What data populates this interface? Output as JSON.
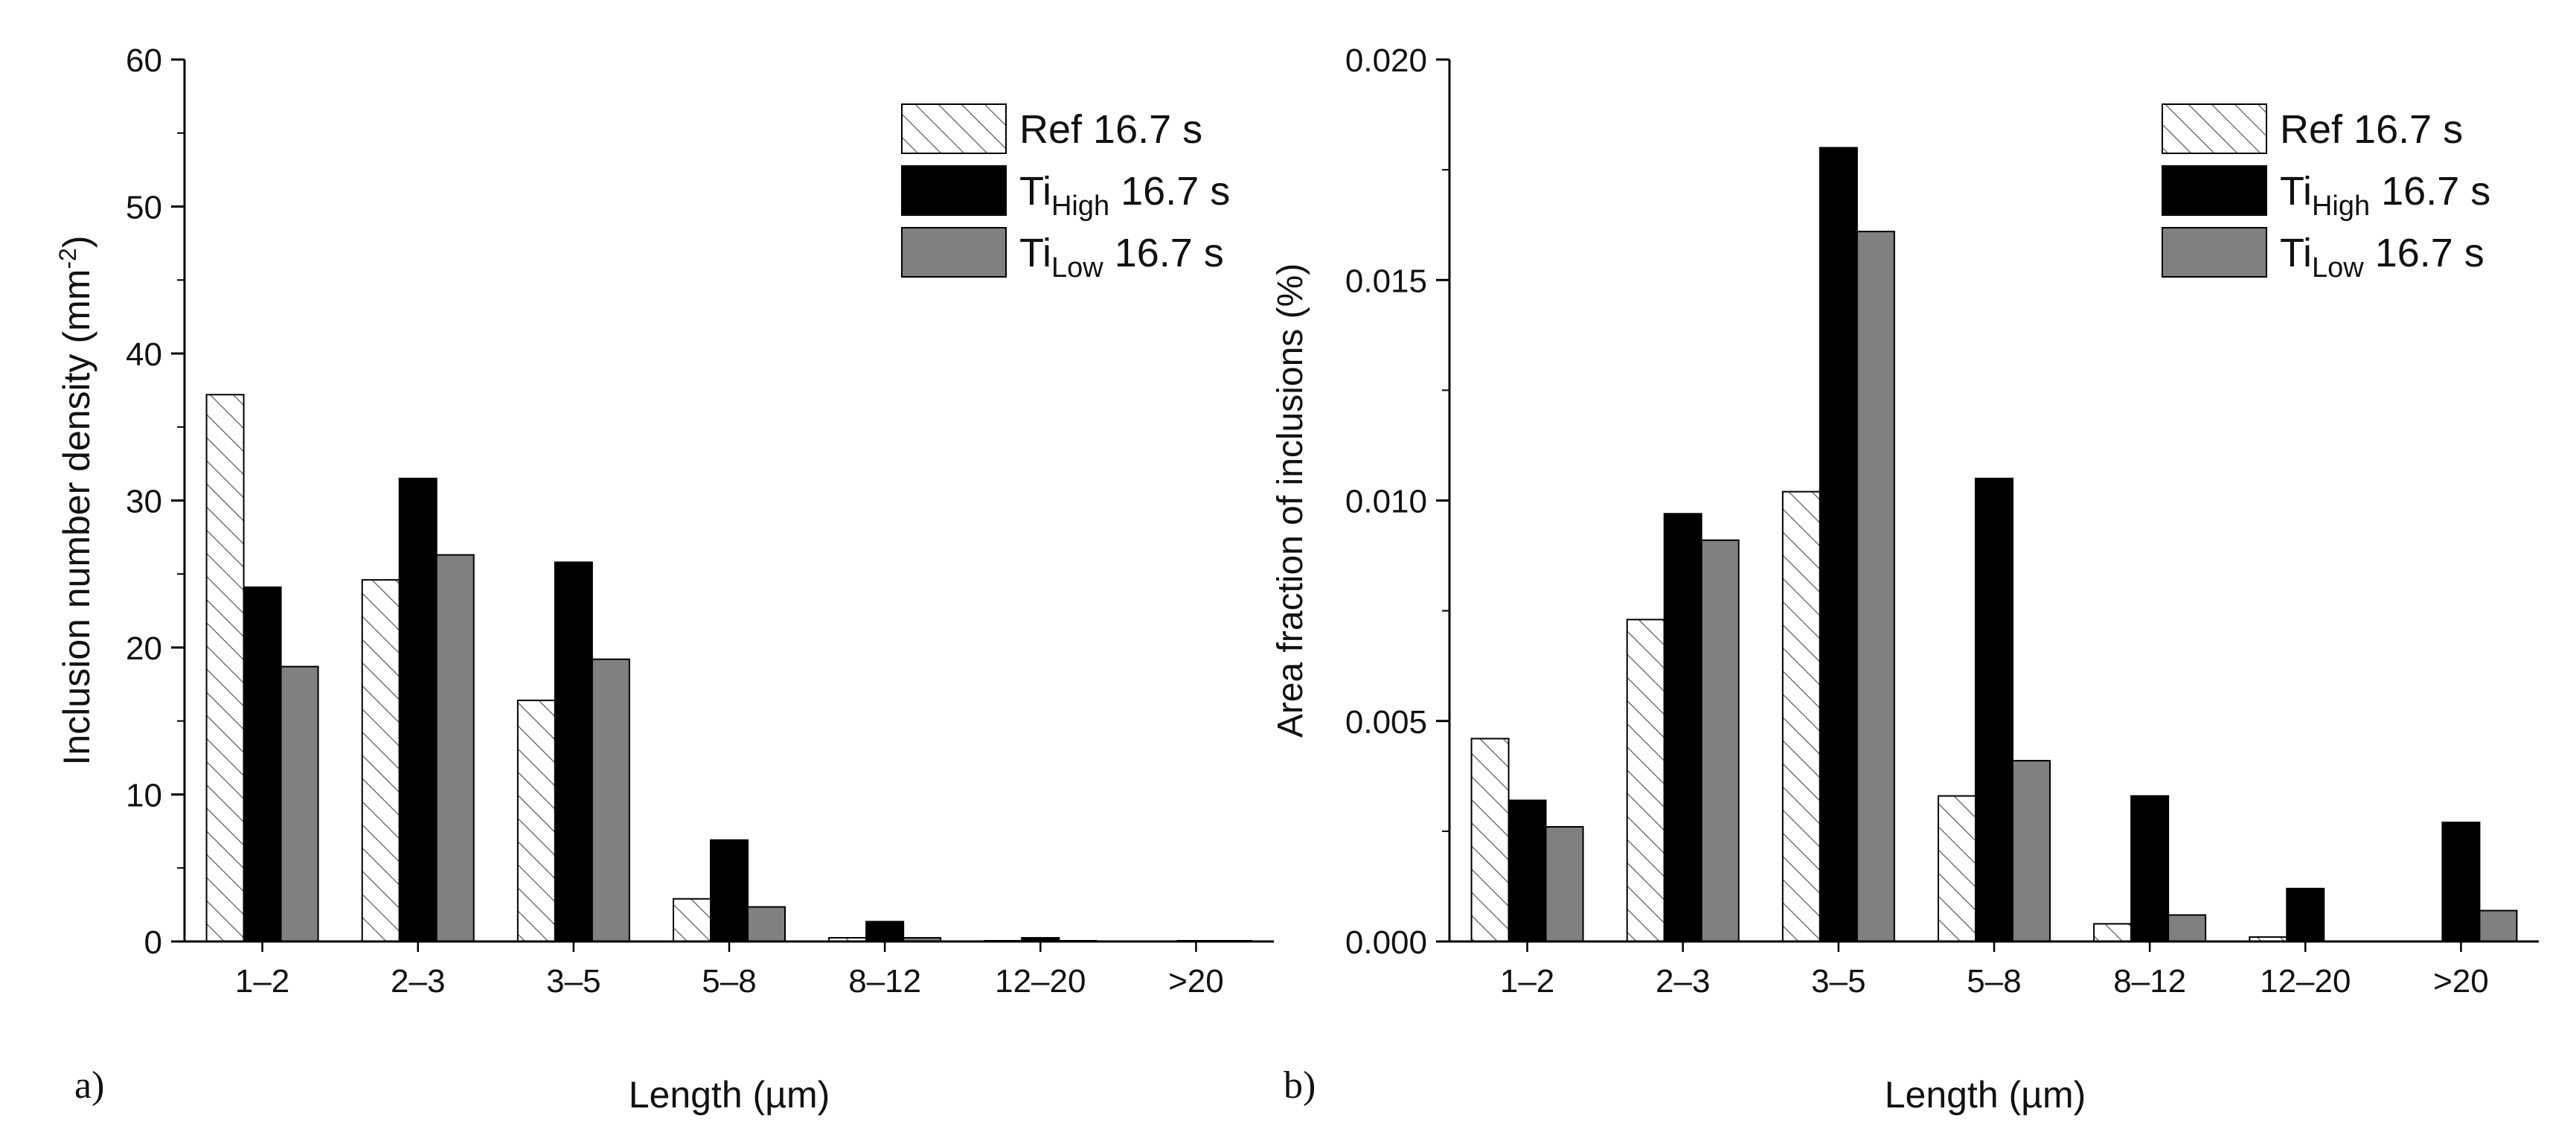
{
  "chart_data": [
    {
      "panel": "a)",
      "type": "bar",
      "title": "",
      "xlabel": "Length (µm)",
      "ylabel": "Inclusion number density (mm⁻²)",
      "ylabel_parts": [
        "Inclusion number density (mm",
        "-2",
        ")"
      ],
      "categories": [
        "1–2",
        "2–3",
        "3–5",
        "5–8",
        "8–12",
        "12–20",
        ">20"
      ],
      "ylim": [
        0,
        60
      ],
      "yticks": [
        0,
        10,
        20,
        30,
        40,
        50,
        60
      ],
      "ytick_labels": [
        "0",
        "10",
        "20",
        "30",
        "40",
        "50",
        "60"
      ],
      "series": [
        {
          "name": "Ref 16.7 s",
          "label_base": "Ref",
          "label_sub": "",
          "label_tail": " 16.7 s",
          "style": "hatch",
          "values": [
            37.2,
            24.6,
            16.4,
            2.9,
            0.25,
            0.05,
            0.0
          ]
        },
        {
          "name": "Ti_High 16.7 s",
          "label_base": "Ti",
          "label_sub": "High",
          "label_tail": " 16.7 s",
          "style": "black",
          "values": [
            24.1,
            31.5,
            25.8,
            6.9,
            1.35,
            0.25,
            0.05
          ]
        },
        {
          "name": "Ti_Low 16.7 s",
          "label_base": "Ti",
          "label_sub": "Low",
          "label_tail": " 16.7 s",
          "style": "gray",
          "values": [
            18.7,
            26.3,
            19.2,
            2.35,
            0.25,
            0.05,
            0.05
          ]
        }
      ],
      "legend": "top-right"
    },
    {
      "panel": "b)",
      "type": "bar",
      "title": "",
      "xlabel": "Length (µm)",
      "ylabel": "Area fraction of inclusions (%)",
      "ylabel_parts": [
        "Area fraction of inclusions (%)",
        "",
        ""
      ],
      "categories": [
        "1–2",
        "2–3",
        "3–5",
        "5–8",
        "8–12",
        "12–20",
        ">20"
      ],
      "ylim": [
        0,
        0.02
      ],
      "yticks": [
        0,
        0.005,
        0.01,
        0.015,
        0.02
      ],
      "ytick_labels": [
        "0.000",
        "0.005",
        "0.010",
        "0.015",
        "0.020"
      ],
      "series": [
        {
          "name": "Ref 16.7 s",
          "label_base": "Ref",
          "label_sub": "",
          "label_tail": " 16.7 s",
          "style": "hatch",
          "values": [
            0.0046,
            0.0073,
            0.0102,
            0.0033,
            0.0004,
            0.0001,
            0.0
          ]
        },
        {
          "name": "Ti_High 16.7 s",
          "label_base": "Ti",
          "label_sub": "High",
          "label_tail": " 16.7 s",
          "style": "black",
          "values": [
            0.0032,
            0.0097,
            0.018,
            0.0105,
            0.0033,
            0.0012,
            0.0027
          ]
        },
        {
          "name": "Ti_Low 16.7 s",
          "label_base": "Ti",
          "label_sub": "Low",
          "label_tail": " 16.7 s",
          "style": "gray",
          "values": [
            0.0026,
            0.0091,
            0.0161,
            0.0041,
            0.0006,
            0.0,
            0.0007
          ]
        }
      ],
      "legend": "top-right"
    }
  ],
  "colors": {
    "ref": "#ffffff",
    "ti_high": "#000000",
    "ti_low": "#808080",
    "axis": "#000000",
    "hatch": "#555555"
  }
}
